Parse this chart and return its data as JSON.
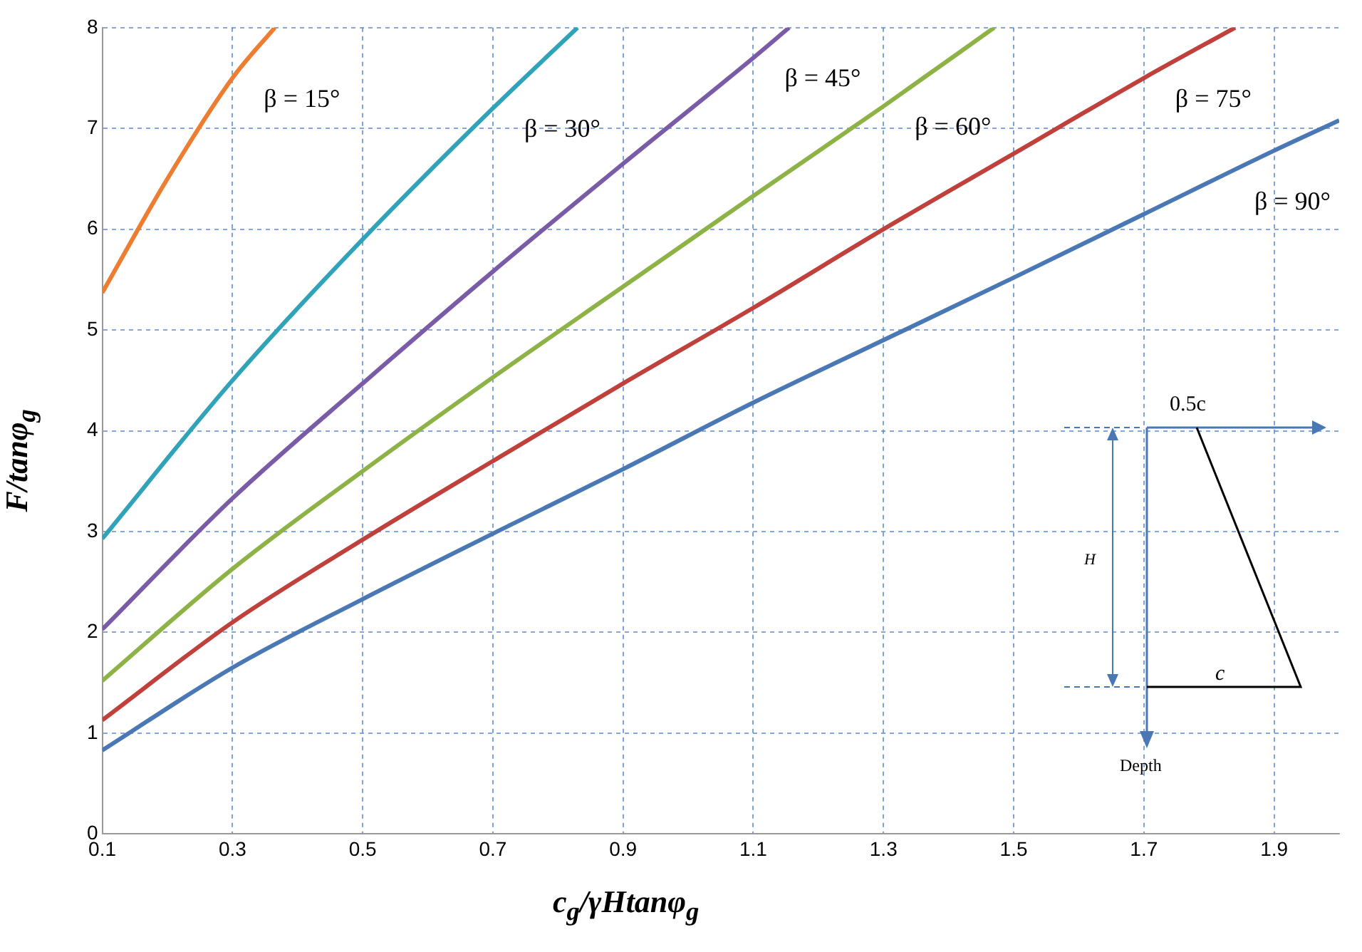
{
  "chart_data": {
    "type": "line",
    "xlabel": "c$_{g}$/γHtanφ$_{g}$",
    "ylabel": "F/tanφ$_{g}$",
    "xlim": [
      0.1,
      2.0
    ],
    "xticks": [
      0.1,
      0.3,
      0.5,
      0.7,
      0.9,
      1.1,
      1.3,
      1.5,
      1.7,
      1.9
    ],
    "ylim": [
      0,
      8
    ],
    "yticks": [
      0,
      1,
      2,
      3,
      4,
      5,
      6,
      7,
      8
    ],
    "grid": true,
    "legend": false,
    "marker": "none",
    "line_style": "solid",
    "series": [
      {
        "name": "β = 15°",
        "color": "#ed7d31",
        "x": [
          0.1,
          0.2,
          0.3,
          0.365
        ],
        "values": [
          5.37,
          6.5,
          7.5,
          8
        ]
      },
      {
        "name": "β = 30°",
        "color": "#31a3b8",
        "x": [
          0.1,
          0.3,
          0.5,
          0.7,
          0.83
        ],
        "values": [
          2.93,
          4.5,
          5.9,
          7.2,
          8
        ]
      },
      {
        "name": "β = 45°",
        "color": "#7a5ba6",
        "x": [
          0.1,
          0.3,
          0.5,
          0.7,
          0.9,
          1.1,
          1.155
        ],
        "values": [
          2.03,
          3.33,
          4.47,
          5.58,
          6.65,
          7.7,
          8
        ]
      },
      {
        "name": "β = 60°",
        "color": "#8db346",
        "x": [
          0.1,
          0.3,
          0.5,
          0.7,
          0.9,
          1.1,
          1.3,
          1.47
        ],
        "values": [
          1.52,
          2.63,
          3.6,
          4.53,
          5.43,
          6.33,
          7.22,
          8
        ]
      },
      {
        "name": "β = 75°",
        "color": "#c0403c",
        "x": [
          0.1,
          0.3,
          0.5,
          0.7,
          0.9,
          1.1,
          1.3,
          1.5,
          1.7,
          1.84
        ],
        "values": [
          1.13,
          2.1,
          2.92,
          3.7,
          4.47,
          5.22,
          6.0,
          6.75,
          7.5,
          8
        ]
      },
      {
        "name": "β = 90°",
        "color": "#4a78b5",
        "x": [
          0.1,
          0.3,
          0.5,
          0.7,
          0.9,
          1.1,
          1.3,
          1.5,
          1.7,
          1.9,
          2.0
        ],
        "values": [
          0.83,
          1.65,
          2.33,
          2.98,
          3.62,
          4.28,
          4.9,
          5.52,
          6.15,
          6.78,
          7.08
        ]
      }
    ],
    "annotations": [
      "0.5c",
      "H",
      "c",
      "Depth"
    ]
  }
}
